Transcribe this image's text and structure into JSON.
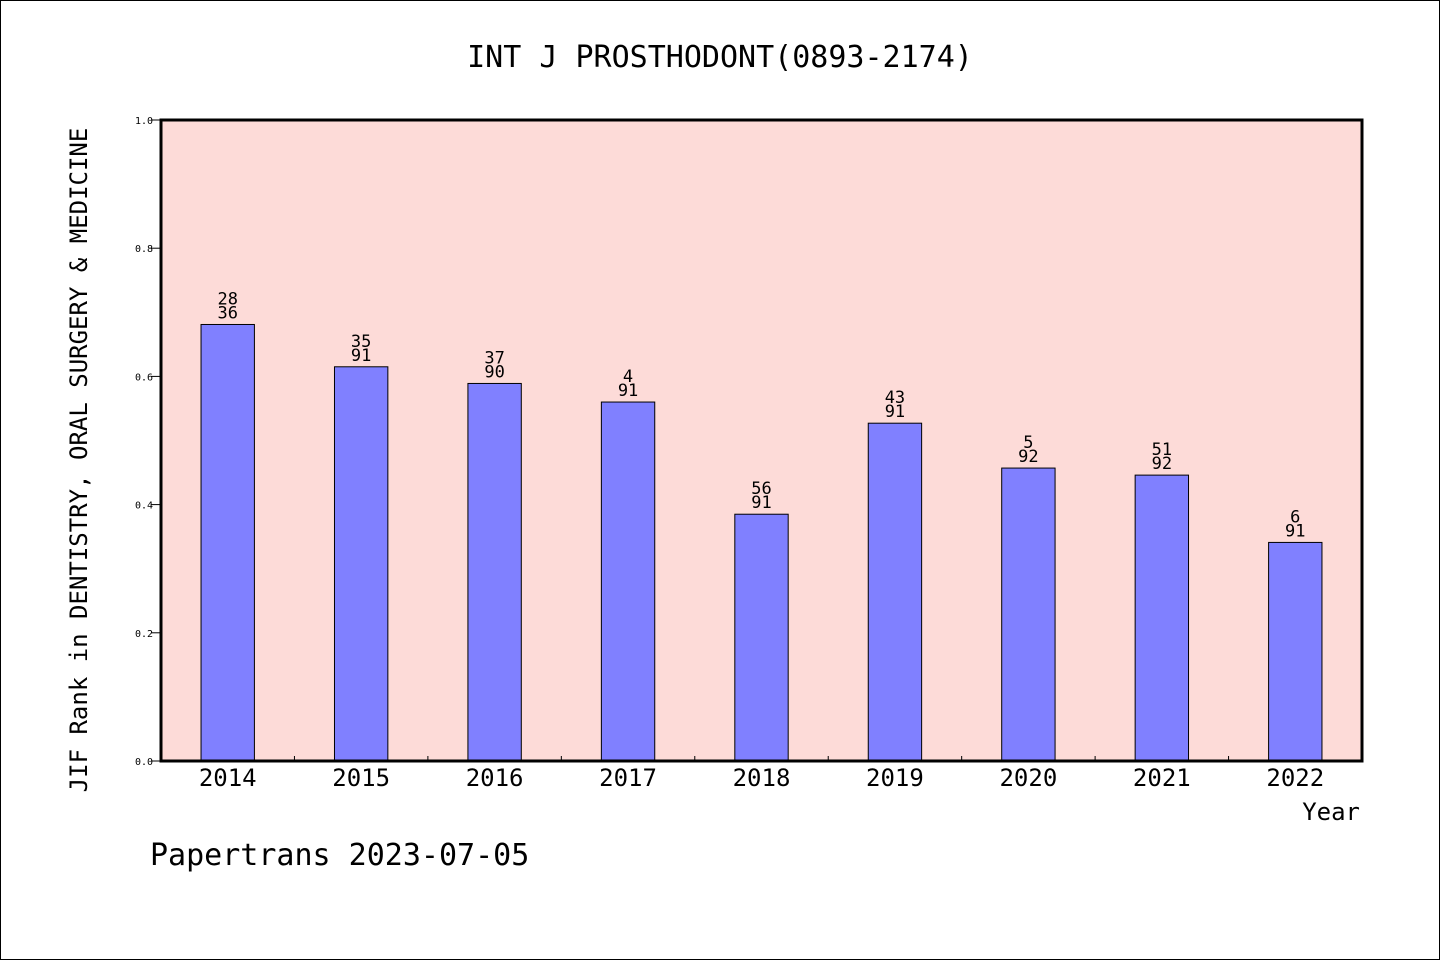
{
  "chart_data": {
    "type": "bar",
    "title": "INT J PROSTHODONT(0893-2174)",
    "xlabel": "Year",
    "ylabel": "JIF Rank in DENTISTRY, ORAL SURGERY & MEDICINE",
    "ylim": [
      0,
      1.0
    ],
    "yticks": [
      "0.0",
      "0.2",
      "0.4",
      "0.6",
      "0.8",
      "1.0"
    ],
    "categories": [
      "2014",
      "2015",
      "2016",
      "2017",
      "2018",
      "2019",
      "2020",
      "2021",
      "2022"
    ],
    "values": [
      0.681,
      0.615,
      0.589,
      0.56,
      0.385,
      0.527,
      0.457,
      0.446,
      0.341
    ],
    "labels_top": [
      "28",
      "35",
      "37",
      "4",
      "56",
      "43",
      "5",
      "51",
      "6"
    ],
    "labels_bottom": [
      "36",
      "91",
      "90",
      "91",
      "91",
      "91",
      "92",
      "92",
      "91"
    ],
    "colors": {
      "bar": "#8080ff",
      "plot_bg": "#fddbd8",
      "frame": "#000000"
    },
    "grid": false
  },
  "footer": "Papertrans 2023-07-05"
}
